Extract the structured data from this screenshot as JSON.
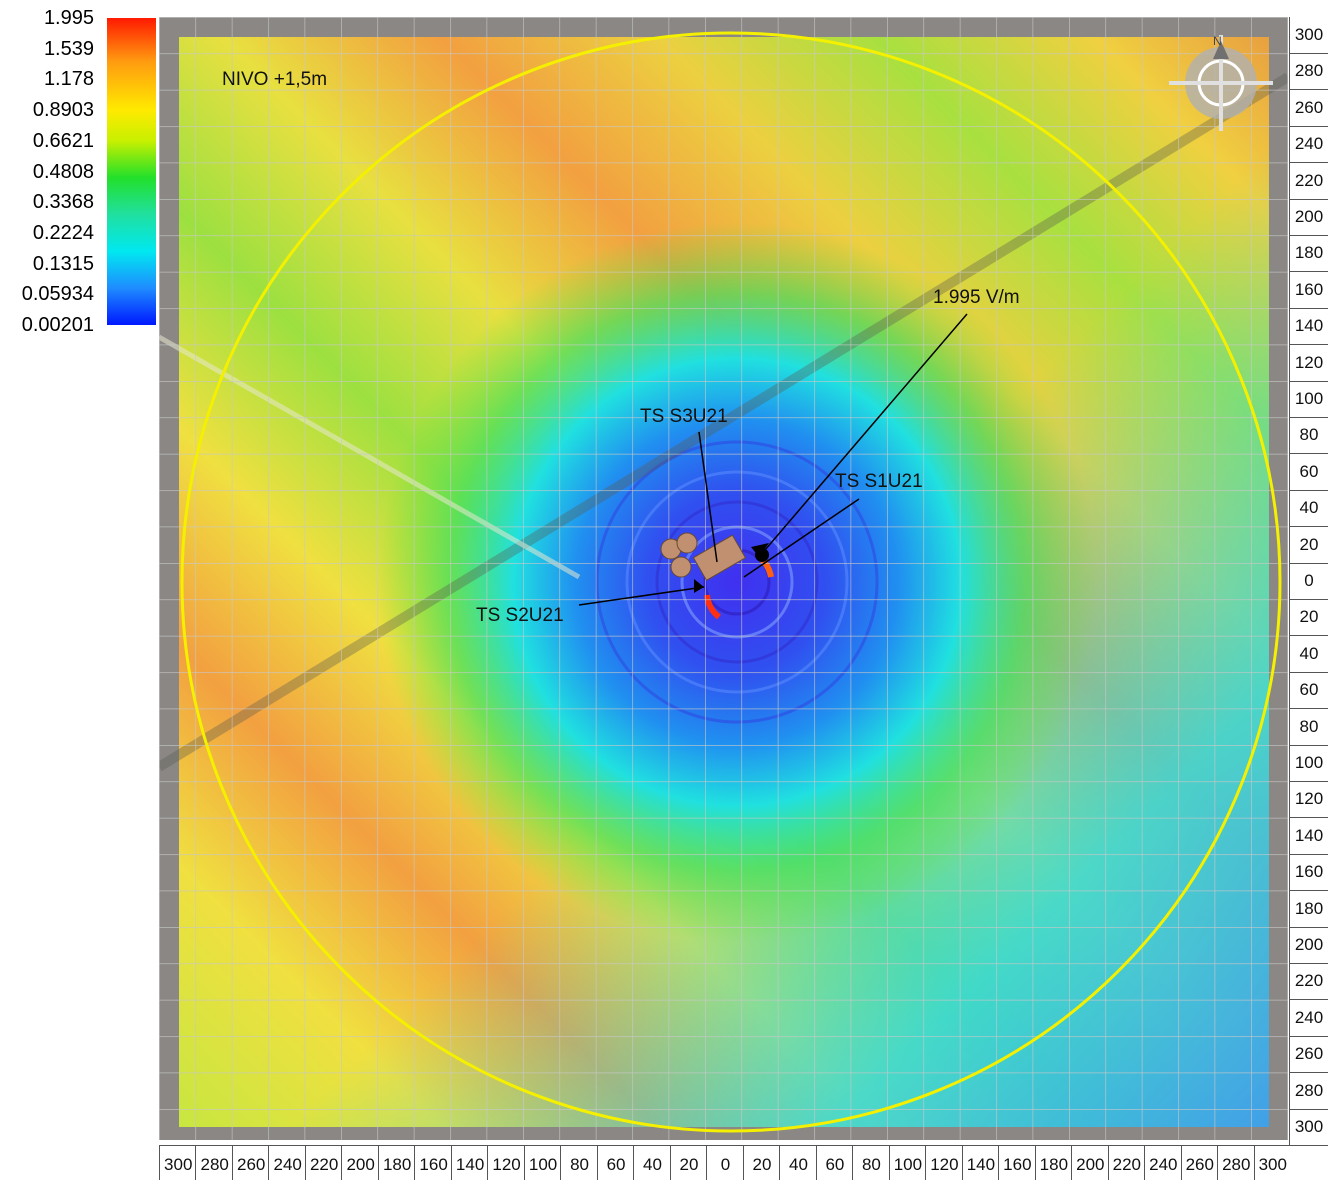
{
  "legend": {
    "values": [
      "1.995",
      "1.539",
      "1.178",
      "0.8903",
      "0.6621",
      "0.4808",
      "0.3368",
      "0.2224",
      "0.1315",
      "0.05934",
      "0.00201"
    ]
  },
  "map": {
    "level_label": "NIVO +1,5m",
    "max_label": "1.995 V/m",
    "sources": [
      {
        "label": "TS S3U21"
      },
      {
        "label": "TS S1U21"
      },
      {
        "label": "TS S2U21"
      }
    ],
    "compass_letter": "N",
    "colors": {
      "ring": "#f4f000",
      "marker": "#000000"
    }
  },
  "axes": {
    "right_ticks": [
      "300",
      "280",
      "260",
      "240",
      "220",
      "200",
      "180",
      "160",
      "140",
      "120",
      "100",
      "80",
      "60",
      "40",
      "20",
      "0",
      "20",
      "40",
      "60",
      "80",
      "100",
      "120",
      "140",
      "160",
      "180",
      "200",
      "220",
      "240",
      "260",
      "280",
      "300"
    ],
    "bottom_ticks": [
      "300",
      "280",
      "260",
      "240",
      "220",
      "200",
      "180",
      "160",
      "140",
      "120",
      "100",
      "80",
      "60",
      "40",
      "20",
      "0",
      "20",
      "40",
      "60",
      "80",
      "100",
      "120",
      "140",
      "160",
      "180",
      "200",
      "220",
      "240",
      "260",
      "280",
      "300"
    ]
  }
}
